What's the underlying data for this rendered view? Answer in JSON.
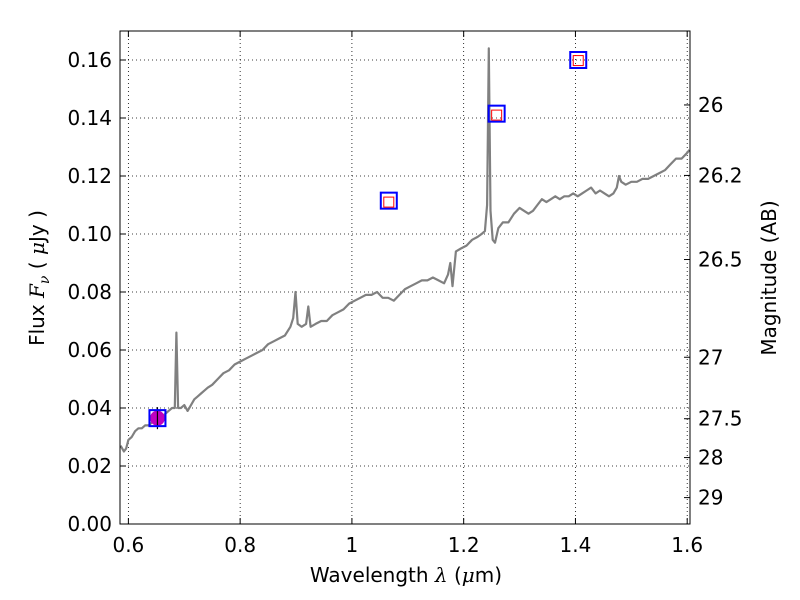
{
  "chart_data": {
    "type": "line",
    "xlabel": {
      "prefix": "Wavelength  ",
      "symbol": "λ",
      "suffix_open": " (",
      "unit_symbol": "μ",
      "unit_rest": "m)"
    },
    "ylabel": {
      "prefix": "Flux  ",
      "symbol": "F",
      "subscript": "ν",
      "suffix_open": "  ( ",
      "unit_symbol": "μ",
      "unit_rest": "Jy )"
    },
    "y2label": "Magnitude (AB)",
    "xlim": [
      0.585,
      1.605
    ],
    "ylim": [
      0.0,
      0.17
    ],
    "grid": true,
    "x_ticks": [
      {
        "value": 0.6,
        "label": "0.6"
      },
      {
        "value": 0.8,
        "label": "0.8"
      },
      {
        "value": 1.0,
        "label": "1"
      },
      {
        "value": 1.2,
        "label": "1.2"
      },
      {
        "value": 1.4,
        "label": "1.4"
      },
      {
        "value": 1.6,
        "label": "1.6"
      }
    ],
    "y_ticks": [
      {
        "value": 0.0,
        "label": "0.00"
      },
      {
        "value": 0.02,
        "label": "0.02"
      },
      {
        "value": 0.04,
        "label": "0.04"
      },
      {
        "value": 0.06,
        "label": "0.06"
      },
      {
        "value": 0.08,
        "label": "0.08"
      },
      {
        "value": 0.1,
        "label": "0.10"
      },
      {
        "value": 0.12,
        "label": "0.12"
      },
      {
        "value": 0.14,
        "label": "0.14"
      },
      {
        "value": 0.16,
        "label": "0.16"
      }
    ],
    "y2_ticks": [
      {
        "label": "26",
        "flux": 0.1445
      },
      {
        "label": "26.2",
        "flux": 0.1202
      },
      {
        "label": "26.5",
        "flux": 0.0912
      },
      {
        "label": "27",
        "flux": 0.0575
      },
      {
        "label": "27.5",
        "flux": 0.0363
      },
      {
        "label": "28",
        "flux": 0.0229
      },
      {
        "label": "29",
        "flux": 0.0091
      }
    ],
    "spectrum": {
      "color": "#808080",
      "x": [
        0.586,
        0.592,
        0.596,
        0.6,
        0.606,
        0.612,
        0.618,
        0.624,
        0.63,
        0.636,
        0.642,
        0.648,
        0.654,
        0.66,
        0.666,
        0.672,
        0.678,
        0.683,
        0.686,
        0.689,
        0.694,
        0.7,
        0.706,
        0.712,
        0.718,
        0.724,
        0.73,
        0.736,
        0.742,
        0.75,
        0.76,
        0.77,
        0.78,
        0.79,
        0.8,
        0.81,
        0.82,
        0.83,
        0.84,
        0.85,
        0.86,
        0.87,
        0.88,
        0.89,
        0.895,
        0.899,
        0.903,
        0.91,
        0.918,
        0.922,
        0.926,
        0.935,
        0.945,
        0.955,
        0.965,
        0.975,
        0.985,
        0.995,
        1.005,
        1.015,
        1.025,
        1.035,
        1.045,
        1.055,
        1.065,
        1.075,
        1.085,
        1.095,
        1.105,
        1.115,
        1.125,
        1.135,
        1.145,
        1.155,
        1.165,
        1.172,
        1.176,
        1.18,
        1.186,
        1.195,
        1.205,
        1.215,
        1.225,
        1.232,
        1.238,
        1.242,
        1.245,
        1.248,
        1.252,
        1.256,
        1.262,
        1.27,
        1.28,
        1.29,
        1.3,
        1.308,
        1.316,
        1.324,
        1.332,
        1.34,
        1.348,
        1.356,
        1.364,
        1.372,
        1.38,
        1.388,
        1.396,
        1.404,
        1.412,
        1.42,
        1.428,
        1.436,
        1.444,
        1.452,
        1.46,
        1.468,
        1.474,
        1.478,
        1.482,
        1.49,
        1.5,
        1.51,
        1.52,
        1.53,
        1.54,
        1.55,
        1.56,
        1.57,
        1.58,
        1.59,
        1.6,
        1.604
      ],
      "y": [
        0.027,
        0.025,
        0.026,
        0.029,
        0.03,
        0.032,
        0.033,
        0.033,
        0.034,
        0.034,
        0.035,
        0.036,
        0.036,
        0.037,
        0.038,
        0.039,
        0.04,
        0.04,
        0.066,
        0.04,
        0.04,
        0.041,
        0.039,
        0.041,
        0.043,
        0.044,
        0.045,
        0.046,
        0.047,
        0.048,
        0.05,
        0.052,
        0.053,
        0.055,
        0.056,
        0.057,
        0.058,
        0.059,
        0.06,
        0.062,
        0.063,
        0.064,
        0.065,
        0.068,
        0.071,
        0.08,
        0.069,
        0.068,
        0.069,
        0.075,
        0.068,
        0.069,
        0.07,
        0.07,
        0.072,
        0.073,
        0.074,
        0.076,
        0.077,
        0.078,
        0.079,
        0.079,
        0.08,
        0.078,
        0.078,
        0.077,
        0.079,
        0.081,
        0.082,
        0.083,
        0.084,
        0.084,
        0.085,
        0.084,
        0.083,
        0.086,
        0.09,
        0.082,
        0.094,
        0.095,
        0.096,
        0.098,
        0.099,
        0.1,
        0.101,
        0.11,
        0.164,
        0.108,
        0.098,
        0.097,
        0.102,
        0.104,
        0.104,
        0.107,
        0.109,
        0.108,
        0.107,
        0.108,
        0.11,
        0.112,
        0.111,
        0.112,
        0.113,
        0.112,
        0.113,
        0.113,
        0.114,
        0.113,
        0.114,
        0.115,
        0.116,
        0.114,
        0.115,
        0.114,
        0.113,
        0.114,
        0.116,
        0.12,
        0.118,
        0.117,
        0.118,
        0.118,
        0.119,
        0.119,
        0.12,
        0.121,
        0.122,
        0.124,
        0.126,
        0.126,
        0.128,
        0.129
      ]
    },
    "photometry": [
      {
        "x": 0.652,
        "y": 0.0365,
        "marker": "square",
        "color": "#0000ff"
      },
      {
        "x": 1.066,
        "y": 0.1115,
        "marker": "square",
        "color": "#0000ff"
      },
      {
        "x": 1.259,
        "y": 0.1415,
        "marker": "square",
        "color": "#0000ff"
      },
      {
        "x": 1.405,
        "y": 0.16,
        "marker": "square",
        "color": "#0000ff"
      }
    ],
    "model_points": [
      {
        "x": 1.066,
        "y": 0.111,
        "marker": "square",
        "color": "#ff0000"
      },
      {
        "x": 1.259,
        "y": 0.141,
        "marker": "square",
        "color": "#ff0000"
      },
      {
        "x": 1.405,
        "y": 0.1598,
        "marker": "square",
        "color": "#ff0000"
      }
    ],
    "detection": {
      "x": 0.652,
      "y": 0.0365,
      "marker": "circle",
      "color": "#bf00bf",
      "box_color": "#000000"
    }
  }
}
